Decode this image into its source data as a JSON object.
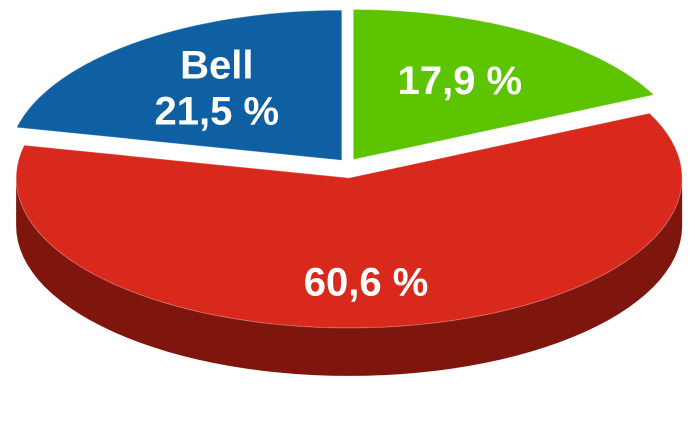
{
  "chart_data": {
    "type": "pie",
    "categories": [
      "Bell",
      null,
      null
    ],
    "values": [
      21.5,
      17.9,
      60.6
    ],
    "value_labels": [
      "21,5 %",
      "17,9 %",
      "60,6 %"
    ],
    "colors": [
      "#0f5fa3",
      "#5cc400",
      "#d9291c"
    ],
    "side_colors": [
      "#0a3d6b",
      "#3d8200",
      "#7e160e"
    ]
  }
}
